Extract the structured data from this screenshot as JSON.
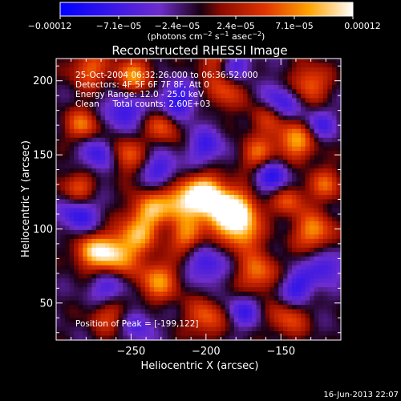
{
  "chart_data": {
    "type": "heatmap",
    "title": "Reconstructed RHESSI Image",
    "xlabel": "Heliocentric X (arcsec)",
    "ylabel": "Heliocentric Y (arcsec)",
    "xlim": [
      -300,
      -110
    ],
    "ylim": [
      25,
      215
    ],
    "x_ticks": [
      -250,
      -200,
      -150
    ],
    "y_ticks": [
      50,
      100,
      150,
      200
    ],
    "x_tick_labels": [
      "−250",
      "−200",
      "−150"
    ],
    "y_tick_labels": [
      "50",
      "100",
      "150",
      "200"
    ],
    "colorbar": {
      "range": [
        -0.00012,
        0.00012
      ],
      "tick_labels": [
        "−0.00012",
        "−7.1e−05",
        "−2.4e−05",
        "2.4e−05",
        "7.1e−05",
        "0.00012"
      ],
      "unit_text": "(photons cm",
      "unit_sup1": "−2",
      "unit_mid": " s",
      "unit_sup2": "−1",
      "unit_end": " asec",
      "unit_sup3": "−2",
      "unit_close": ")"
    },
    "annotations": [
      "25-Oct-2004 06:32:26.000 to 06:36:52.000",
      "Detectors: 4F 5F 6F 7F 8F, Att 0",
      "Energy Range: 12.0 - 25.0 keV",
      "Clean     Total counts: 2.60E+03"
    ],
    "peak_label": "Position of Peak = [-199,122]",
    "peak": {
      "x": -199,
      "y": 122
    },
    "blobs": [
      {
        "x": -200,
        "y": 122,
        "a": 1.1,
        "s": 10
      },
      {
        "x": -218,
        "y": 118,
        "a": 0.7,
        "s": 9
      },
      {
        "x": -188,
        "y": 108,
        "a": 0.6,
        "s": 9
      },
      {
        "x": -178,
        "y": 112,
        "a": 0.85,
        "s": 10
      },
      {
        "x": -213,
        "y": 95,
        "a": 0.6,
        "s": 8
      },
      {
        "x": -238,
        "y": 112,
        "a": 0.7,
        "s": 9
      },
      {
        "x": -246,
        "y": 95,
        "a": 0.6,
        "s": 9
      },
      {
        "x": -262,
        "y": 82,
        "a": 0.85,
        "s": 10
      },
      {
        "x": -278,
        "y": 85,
        "a": 0.6,
        "s": 8
      },
      {
        "x": -232,
        "y": 65,
        "a": 0.65,
        "s": 10
      },
      {
        "x": -165,
        "y": 70,
        "a": 0.6,
        "s": 10
      },
      {
        "x": -128,
        "y": 98,
        "a": 0.7,
        "s": 9
      },
      {
        "x": -175,
        "y": 95,
        "a": 0.55,
        "s": 8
      },
      {
        "x": -278,
        "y": 208,
        "a": 0.55,
        "s": 9
      },
      {
        "x": -248,
        "y": 203,
        "a": 0.65,
        "s": 9
      },
      {
        "x": -188,
        "y": 193,
        "a": 0.5,
        "s": 9
      },
      {
        "x": -131,
        "y": 198,
        "a": 0.6,
        "s": 9
      },
      {
        "x": -140,
        "y": 160,
        "a": 0.75,
        "s": 10
      },
      {
        "x": -166,
        "y": 150,
        "a": 0.55,
        "s": 8
      },
      {
        "x": -228,
        "y": 170,
        "a": 0.6,
        "s": 8
      },
      {
        "x": -282,
        "y": 170,
        "a": 0.6,
        "s": 8
      },
      {
        "x": -255,
        "y": 150,
        "a": 0.6,
        "s": 9
      },
      {
        "x": -285,
        "y": 128,
        "a": 0.55,
        "s": 8
      },
      {
        "x": -145,
        "y": 40,
        "a": 0.5,
        "s": 9
      },
      {
        "x": -200,
        "y": 40,
        "a": 0.55,
        "s": 9
      },
      {
        "x": -265,
        "y": 42,
        "a": 0.45,
        "s": 9
      },
      {
        "x": -120,
        "y": 130,
        "a": 0.5,
        "s": 8
      },
      {
        "x": -195,
        "y": 215,
        "a": 0.4,
        "s": 8
      },
      {
        "x": -145,
        "y": 120,
        "a": 0.55,
        "s": 8
      },
      {
        "x": -160,
        "y": 175,
        "a": 0.45,
        "s": 8
      },
      {
        "x": -255,
        "y": 180,
        "a": -0.55,
        "s": 9
      },
      {
        "x": -270,
        "y": 150,
        "a": -0.6,
        "s": 9
      },
      {
        "x": -220,
        "y": 185,
        "a": -0.6,
        "s": 10
      },
      {
        "x": -150,
        "y": 185,
        "a": -0.55,
        "s": 9
      },
      {
        "x": -125,
        "y": 170,
        "a": -0.5,
        "s": 8
      },
      {
        "x": -155,
        "y": 135,
        "a": -0.6,
        "s": 9
      },
      {
        "x": -200,
        "y": 155,
        "a": -0.45,
        "s": 9
      },
      {
        "x": -285,
        "y": 110,
        "a": -0.55,
        "s": 9
      },
      {
        "x": -230,
        "y": 140,
        "a": -0.5,
        "s": 8
      },
      {
        "x": -200,
        "y": 75,
        "a": -0.5,
        "s": 9
      },
      {
        "x": -140,
        "y": 60,
        "a": -0.55,
        "s": 9
      },
      {
        "x": -265,
        "y": 60,
        "a": -0.5,
        "s": 9
      },
      {
        "x": -175,
        "y": 45,
        "a": -0.45,
        "s": 8
      },
      {
        "x": -120,
        "y": 75,
        "a": -0.5,
        "s": 8
      },
      {
        "x": -245,
        "y": 35,
        "a": -0.4,
        "s": 8
      },
      {
        "x": -180,
        "y": 210,
        "a": -0.45,
        "s": 8
      }
    ]
  },
  "footer": {
    "timestamp": "16-Jun-2013 22:07"
  }
}
